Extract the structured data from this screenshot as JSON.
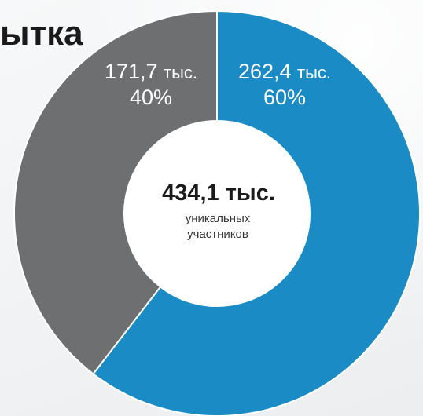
{
  "chart_data": {
    "type": "pie",
    "title": "ытка",
    "center": {
      "value": "434,1 тыс.",
      "caption_line1": "уникальных",
      "caption_line2": "участников"
    },
    "slices": [
      {
        "value_text": "262,4 тыс.",
        "value_num": "262,4",
        "unit": "тыс.",
        "percent_text": "60%",
        "value": 262.4,
        "color": "#1a8bc4"
      },
      {
        "value_text": "171,7 тыс.",
        "value_num": "171,7",
        "unit": "тыс.",
        "percent_text": "40%",
        "value": 171.7,
        "color": "#6e6f71"
      }
    ],
    "start_angle_deg": 0,
    "clockwise": true
  }
}
